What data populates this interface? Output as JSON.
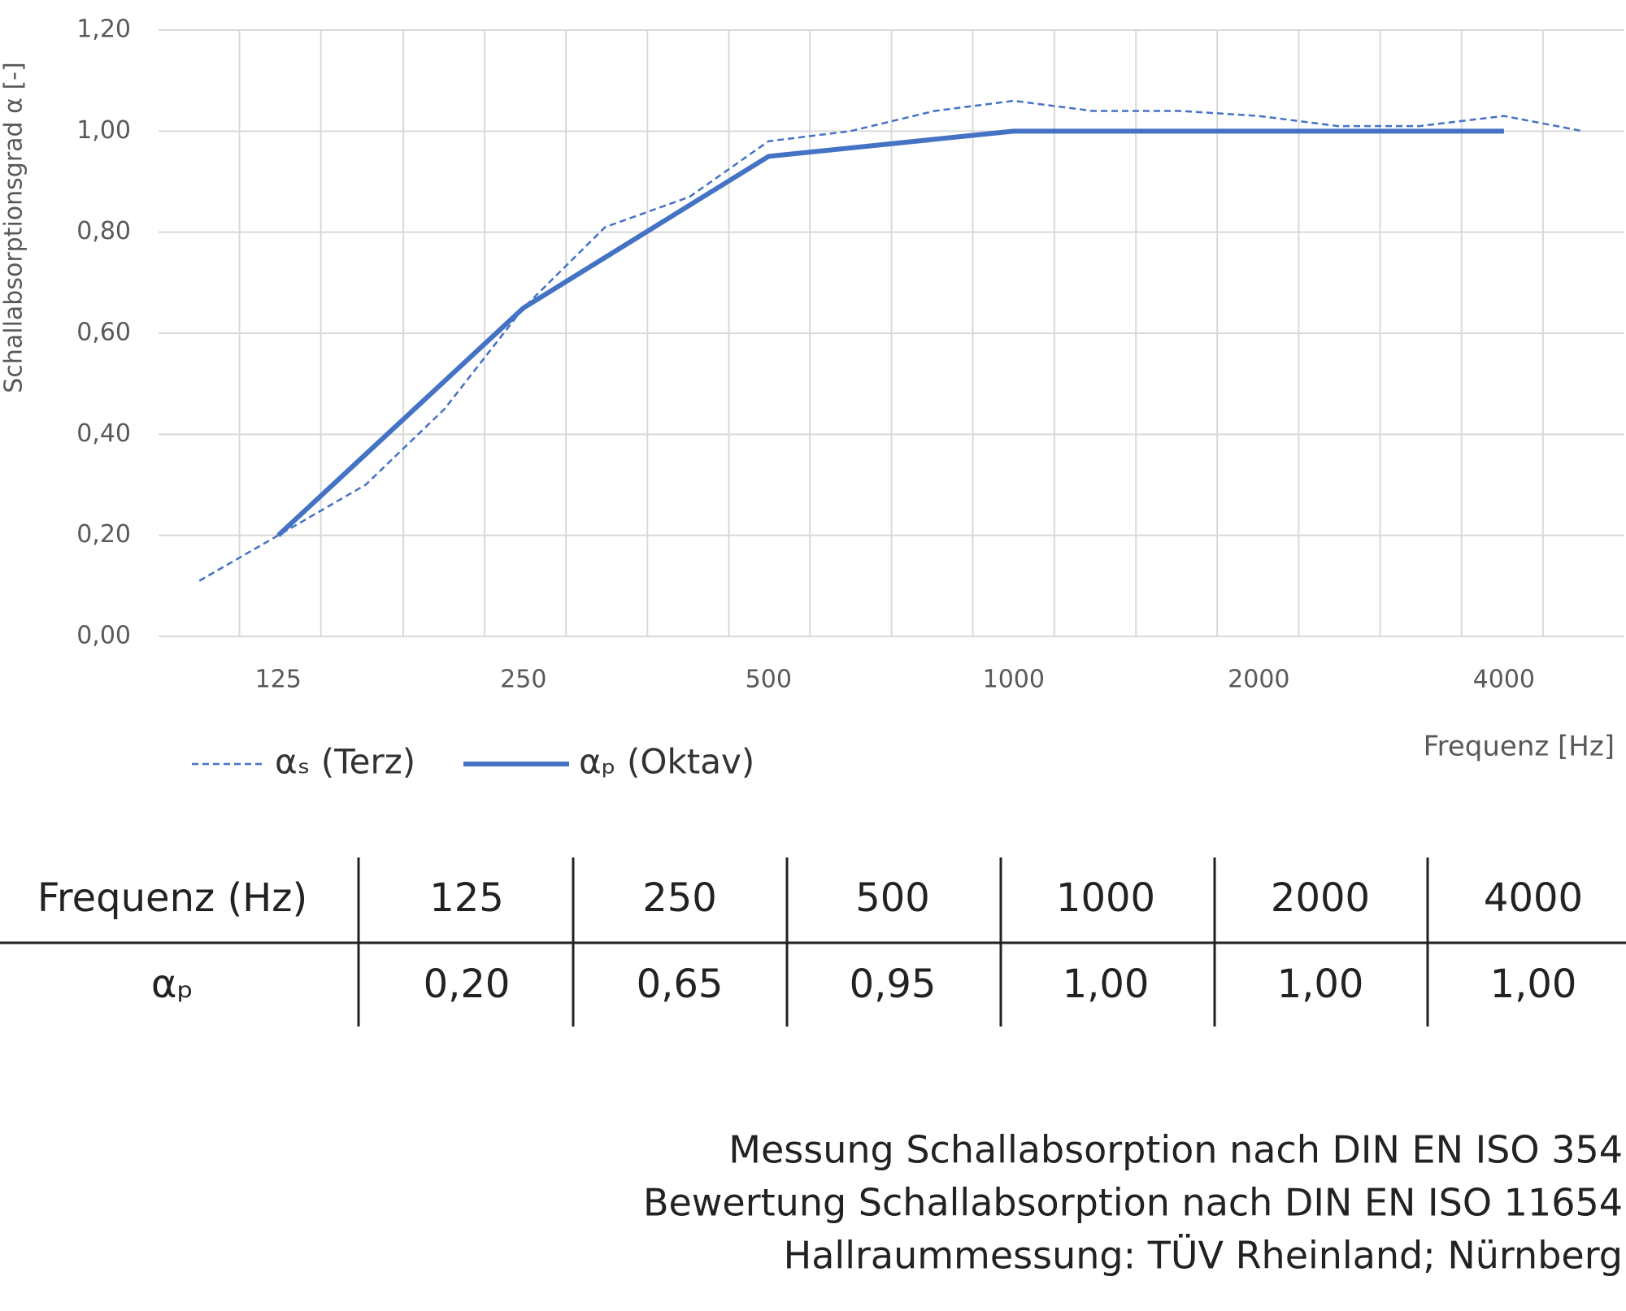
{
  "chart_data": {
    "type": "line",
    "y_label": "Schallabsorptionsgrad α [-]",
    "x_label": "Frequenz [Hz]",
    "xscale": "log",
    "xlim": [
      89.1,
      5623
    ],
    "xticks": [
      125,
      250,
      500,
      1000,
      2000,
      4000
    ],
    "xminorticks": [
      112,
      141,
      178,
      224,
      282,
      355,
      447,
      562,
      708,
      891,
      1122,
      1413,
      1778,
      2239,
      2818,
      3548,
      4467
    ],
    "ylim": [
      0,
      1.2
    ],
    "yticks": [
      {
        "value": 0,
        "label": "0,00"
      },
      {
        "value": 0.2,
        "label": "0,20"
      },
      {
        "value": 0.4,
        "label": "0,40"
      },
      {
        "value": 0.6,
        "label": "0,60"
      },
      {
        "value": 0.8,
        "label": "0,80"
      },
      {
        "value": 1.0,
        "label": "1,00"
      },
      {
        "value": 1.2,
        "label": "1,20"
      }
    ],
    "grid": true,
    "legend": "bottom-left",
    "series": [
      {
        "name": "αₛ (Terz)",
        "color": "#4472c4",
        "style": "dashed",
        "x": [
          100,
          125,
          160,
          200,
          250,
          315,
          400,
          500,
          630,
          800,
          1000,
          1250,
          1600,
          2000,
          2500,
          3150,
          4000,
          5000
        ],
        "values": [
          0.11,
          0.2,
          0.3,
          0.45,
          0.65,
          0.81,
          0.87,
          0.98,
          1.0,
          1.04,
          1.06,
          1.04,
          1.04,
          1.03,
          1.01,
          1.01,
          1.03,
          1.0
        ]
      },
      {
        "name": "αₚ (Oktav)",
        "color": "#4472c4",
        "style": "solid",
        "x": [
          125,
          250,
          500,
          1000,
          2000,
          4000
        ],
        "values": [
          0.2,
          0.65,
          0.95,
          1.0,
          1.0,
          1.0
        ]
      }
    ]
  },
  "table": {
    "header": [
      "Frequenz (Hz)",
      "125",
      "250",
      "500",
      "1000",
      "2000",
      "4000"
    ],
    "rows": [
      [
        "αₚ",
        "0,20",
        "0,65",
        "0,95",
        "1,00",
        "1,00",
        "1,00"
      ]
    ]
  },
  "notes": [
    "Messung Schallabsorption nach DIN EN ISO 354",
    "Bewertung Schallabsorption nach DIN EN ISO 11654",
    "Hallraummessung: TÜV Rheinland; Nürnberg"
  ]
}
